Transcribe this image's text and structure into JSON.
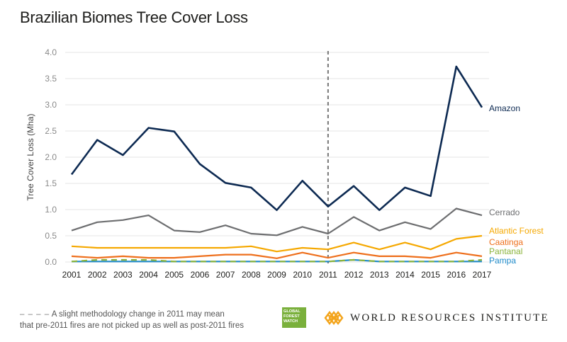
{
  "chart_data": {
    "type": "line",
    "title": "Brazilian Biomes Tree Cover Loss",
    "xlabel": "",
    "ylabel": "Tree Cover Loss (Mha)",
    "ylim": [
      0,
      4.0
    ],
    "yticks": [
      "0.0",
      "0.5",
      "1.0",
      "1.5",
      "2.0",
      "2.5",
      "3.0",
      "3.5",
      "4.0"
    ],
    "grid": true,
    "legend": "right-end labels",
    "x": [
      "2001",
      "2002",
      "2003",
      "2004",
      "2005",
      "2006",
      "2007",
      "2008",
      "2009",
      "2010",
      "2011",
      "2012",
      "2013",
      "2014",
      "2015",
      "2016",
      "2017"
    ],
    "annotation": {
      "x": "2011",
      "style": "dashed vertical line"
    },
    "series": [
      {
        "name": "Amazon",
        "color": "#0d2a52",
        "values": [
          1.67,
          2.33,
          2.04,
          2.56,
          2.49,
          1.87,
          1.51,
          1.42,
          0.99,
          1.55,
          1.06,
          1.45,
          0.99,
          1.42,
          1.26,
          3.73,
          2.95
        ]
      },
      {
        "name": "Cerrado",
        "color": "#6d6e70",
        "values": [
          0.6,
          0.76,
          0.8,
          0.89,
          0.6,
          0.57,
          0.7,
          0.54,
          0.51,
          0.67,
          0.54,
          0.86,
          0.6,
          0.76,
          0.63,
          1.02,
          0.89
        ]
      },
      {
        "name": "Atlantic Forest",
        "color": "#f5a800",
        "values": [
          0.3,
          0.27,
          0.27,
          0.27,
          0.27,
          0.27,
          0.27,
          0.3,
          0.2,
          0.27,
          0.24,
          0.37,
          0.24,
          0.37,
          0.24,
          0.44,
          0.5
        ]
      },
      {
        "name": "Caatinga",
        "color": "#ee6f1c",
        "values": [
          0.11,
          0.08,
          0.11,
          0.08,
          0.08,
          0.11,
          0.14,
          0.14,
          0.07,
          0.18,
          0.08,
          0.18,
          0.11,
          0.11,
          0.08,
          0.18,
          0.11
        ]
      },
      {
        "name": "Pantanal",
        "color": "#8ab33a",
        "values": [
          0.01,
          0.04,
          0.04,
          0.04,
          0.01,
          0.01,
          0.01,
          0.01,
          0.01,
          0.01,
          0.01,
          0.04,
          0.01,
          0.01,
          0.01,
          0.01,
          0.04
        ]
      },
      {
        "name": "Pampa",
        "color": "#1f8ac9",
        "values": [
          0.01,
          0.01,
          0.01,
          0.01,
          0.01,
          0.01,
          0.01,
          0.01,
          0.01,
          0.01,
          0.01,
          0.04,
          0.01,
          0.01,
          0.01,
          0.01,
          0.01
        ]
      }
    ]
  },
  "footnote": {
    "dash": "– – – –",
    "line1": "A slight methodology change in 2011 may mean",
    "line2": "that pre-2011 fires are not picked up as well as post-2011 fires"
  },
  "logos": {
    "gfw": [
      "GLOBAL",
      "FOREST",
      "WATCH"
    ],
    "wri": "WORLD RESOURCES INSTITUTE"
  }
}
